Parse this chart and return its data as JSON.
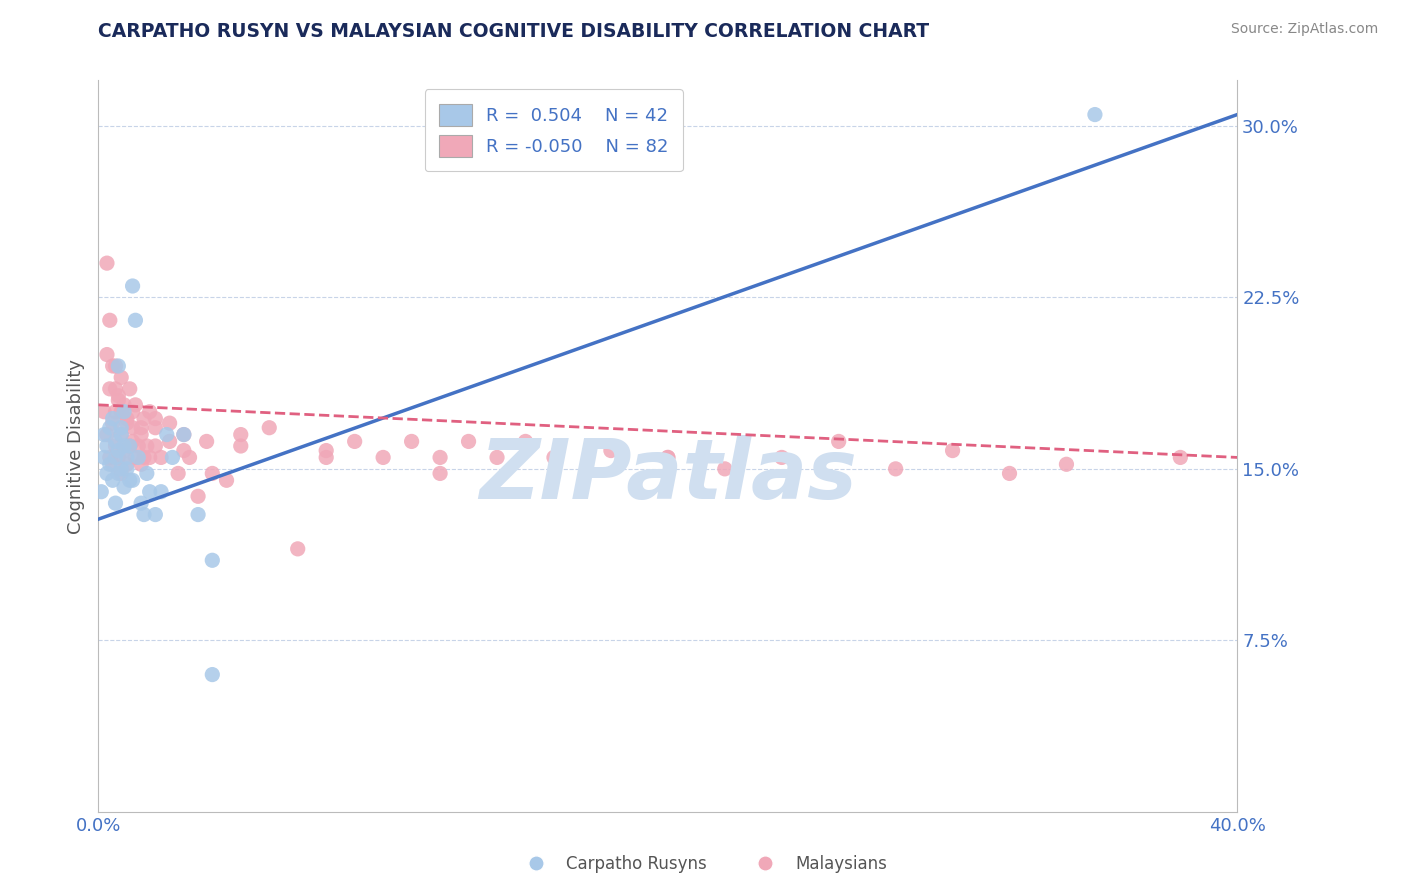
{
  "title": "CARPATHO RUSYN VS MALAYSIAN COGNITIVE DISABILITY CORRELATION CHART",
  "source": "Source: ZipAtlas.com",
  "ylabel": "Cognitive Disability",
  "yticks": [
    0.0,
    0.075,
    0.15,
    0.225,
    0.3
  ],
  "ytick_labels": [
    "",
    "7.5%",
    "15.0%",
    "22.5%",
    "30.0%"
  ],
  "xlim": [
    0.0,
    0.4
  ],
  "ylim": [
    0.0,
    0.32
  ],
  "blue_R": 0.504,
  "blue_N": 42,
  "pink_R": -0.05,
  "pink_N": 82,
  "blue_color": "#a8c8e8",
  "pink_color": "#f0a8b8",
  "blue_line_color": "#4472c4",
  "pink_line_color": "#e06080",
  "legend_blue_label": "Carpatho Rusyns",
  "legend_pink_label": "Malaysians",
  "watermark": "ZIPatlas",
  "watermark_color": "#d0dff0",
  "background_color": "#ffffff",
  "grid_color": "#c8d4e8",
  "title_color": "#1a2a5a",
  "source_color": "#888888",
  "axis_label_color": "#4472c4",
  "ylabel_color": "#555555",
  "blue_line_y0": 0.128,
  "blue_line_y1": 0.305,
  "pink_line_y0": 0.178,
  "pink_line_y1": 0.155,
  "blue_scatter_x": [
    0.001,
    0.002,
    0.002,
    0.003,
    0.003,
    0.004,
    0.004,
    0.005,
    0.005,
    0.006,
    0.006,
    0.007,
    0.007,
    0.008,
    0.008,
    0.009,
    0.009,
    0.01,
    0.01,
    0.011,
    0.011,
    0.012,
    0.013,
    0.014,
    0.015,
    0.016,
    0.017,
    0.018,
    0.02,
    0.022,
    0.024,
    0.026,
    0.03,
    0.035,
    0.04,
    0.012,
    0.009,
    0.007,
    0.008,
    0.006,
    0.04,
    0.35
  ],
  "blue_scatter_y": [
    0.14,
    0.155,
    0.165,
    0.148,
    0.16,
    0.152,
    0.168,
    0.145,
    0.172,
    0.155,
    0.162,
    0.148,
    0.158,
    0.15,
    0.165,
    0.142,
    0.16,
    0.15,
    0.155,
    0.16,
    0.145,
    0.23,
    0.215,
    0.155,
    0.135,
    0.13,
    0.148,
    0.14,
    0.13,
    0.14,
    0.165,
    0.155,
    0.165,
    0.13,
    0.06,
    0.145,
    0.175,
    0.195,
    0.168,
    0.135,
    0.11,
    0.305
  ],
  "pink_scatter_x": [
    0.002,
    0.003,
    0.003,
    0.004,
    0.004,
    0.005,
    0.005,
    0.005,
    0.006,
    0.006,
    0.006,
    0.007,
    0.007,
    0.008,
    0.008,
    0.008,
    0.009,
    0.009,
    0.01,
    0.01,
    0.011,
    0.011,
    0.012,
    0.012,
    0.013,
    0.013,
    0.014,
    0.015,
    0.015,
    0.016,
    0.016,
    0.017,
    0.018,
    0.018,
    0.02,
    0.02,
    0.022,
    0.025,
    0.025,
    0.028,
    0.03,
    0.032,
    0.035,
    0.038,
    0.04,
    0.045,
    0.05,
    0.06,
    0.07,
    0.08,
    0.09,
    0.1,
    0.11,
    0.12,
    0.13,
    0.14,
    0.15,
    0.16,
    0.18,
    0.2,
    0.22,
    0.24,
    0.26,
    0.28,
    0.3,
    0.32,
    0.34,
    0.003,
    0.004,
    0.006,
    0.007,
    0.008,
    0.01,
    0.012,
    0.015,
    0.02,
    0.03,
    0.05,
    0.08,
    0.12,
    0.2,
    0.38
  ],
  "pink_scatter_y": [
    0.175,
    0.165,
    0.2,
    0.155,
    0.185,
    0.152,
    0.17,
    0.195,
    0.16,
    0.175,
    0.185,
    0.155,
    0.18,
    0.148,
    0.165,
    0.19,
    0.158,
    0.178,
    0.152,
    0.172,
    0.16,
    0.185,
    0.162,
    0.175,
    0.155,
    0.178,
    0.16,
    0.152,
    0.168,
    0.155,
    0.172,
    0.16,
    0.155,
    0.175,
    0.16,
    0.172,
    0.155,
    0.162,
    0.17,
    0.148,
    0.158,
    0.155,
    0.138,
    0.162,
    0.148,
    0.145,
    0.165,
    0.168,
    0.115,
    0.155,
    0.162,
    0.155,
    0.162,
    0.148,
    0.162,
    0.155,
    0.162,
    0.155,
    0.158,
    0.155,
    0.15,
    0.155,
    0.162,
    0.15,
    0.158,
    0.148,
    0.152,
    0.24,
    0.215,
    0.195,
    0.182,
    0.175,
    0.17,
    0.168,
    0.165,
    0.168,
    0.165,
    0.16,
    0.158,
    0.155,
    0.155,
    0.155
  ]
}
